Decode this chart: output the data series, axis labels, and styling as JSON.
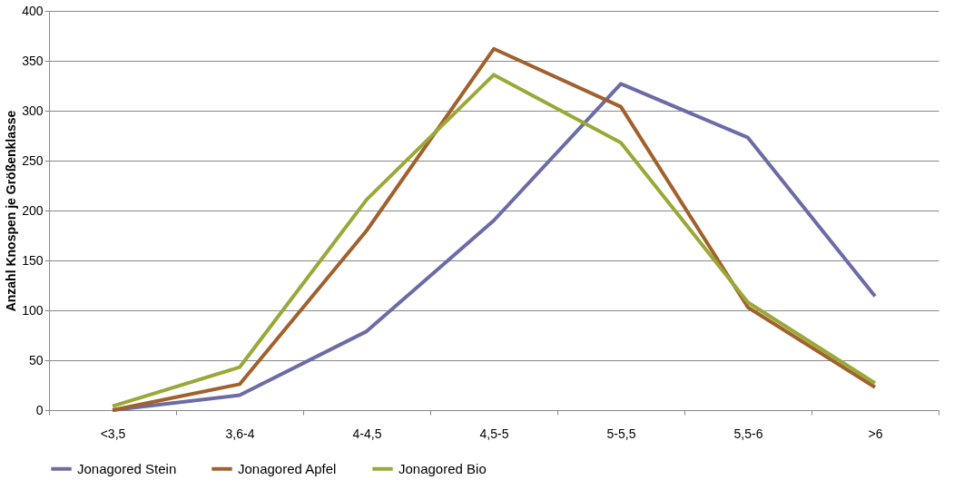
{
  "chart_data": {
    "type": "line",
    "ylabel": "Anzahl Knospen je Größenklasse",
    "categories": [
      "<3,5",
      "3,6-4",
      "4-4,5",
      "4,5-5",
      "5-5,5",
      "5,5-6",
      ">6"
    ],
    "ylim": [
      0,
      400
    ],
    "yticks": [
      0,
      50,
      100,
      150,
      200,
      250,
      300,
      350,
      400
    ],
    "grid": "y",
    "legend": "bottom",
    "marker": "none",
    "line_style": "solid",
    "series": [
      {
        "name": "Jonagored Stein",
        "color": "#6b6ba6",
        "values": [
          0,
          15,
          79,
          190,
          327,
          273,
          114
        ]
      },
      {
        "name": "Jonagored Apfel",
        "color": "#a0612d",
        "values": [
          0,
          26,
          180,
          362,
          304,
          103,
          23
        ]
      },
      {
        "name": "Jonagored Bio",
        "color": "#9aa838",
        "values": [
          4,
          43,
          211,
          336,
          268,
          108,
          27
        ]
      }
    ]
  }
}
